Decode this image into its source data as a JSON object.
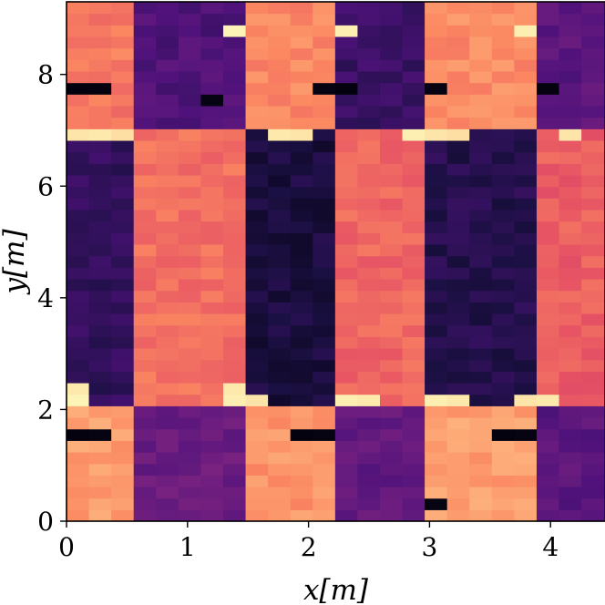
{
  "chart_data": {
    "type": "heatmap",
    "title": "",
    "xlabel": "x[m]",
    "ylabel": "y[m]",
    "xlim": [
      0,
      4.45
    ],
    "ylim": [
      0,
      9.3
    ],
    "x_ticks": [
      0,
      1,
      2,
      3,
      4
    ],
    "x_tick_labels": [
      "0",
      "1",
      "2",
      "3",
      "4"
    ],
    "y_ticks": [
      0,
      2,
      4,
      6,
      8
    ],
    "y_tick_labels": [
      "0",
      "2",
      "4",
      "6",
      "8"
    ],
    "colormap": "magma",
    "grid": false,
    "grid_shape": {
      "cols": 24,
      "rows": 45
    },
    "cell_size_m": {
      "dx": 0.185,
      "dy": 0.2067
    },
    "pattern_description": "checkerboard of bright (salmon/cream) and dark (purple/black) patches",
    "regions": [
      {
        "x_range": [
          0.0,
          0.55
        ],
        "y_range": [
          7.0,
          9.3
        ],
        "level": 0.72
      },
      {
        "x_range": [
          0.55,
          1.45
        ],
        "y_range": [
          7.0,
          9.3
        ],
        "level": 0.25
      },
      {
        "x_range": [
          1.45,
          2.25
        ],
        "y_range": [
          7.0,
          9.3
        ],
        "level": 0.75
      },
      {
        "x_range": [
          2.25,
          3.05
        ],
        "y_range": [
          7.0,
          9.3
        ],
        "level": 0.2
      },
      {
        "x_range": [
          3.05,
          3.95
        ],
        "y_range": [
          7.0,
          9.3
        ],
        "level": 0.76
      },
      {
        "x_range": [
          3.95,
          4.45
        ],
        "y_range": [
          7.0,
          9.3
        ],
        "level": 0.28
      },
      {
        "x_range": [
          0.0,
          0.55
        ],
        "y_range": [
          2.1,
          7.0
        ],
        "level": 0.18
      },
      {
        "x_range": [
          0.55,
          1.45
        ],
        "y_range": [
          2.1,
          7.0
        ],
        "level": 0.7
      },
      {
        "x_range": [
          1.45,
          2.25
        ],
        "y_range": [
          2.1,
          7.0
        ],
        "level": 0.12
      },
      {
        "x_range": [
          2.25,
          3.05
        ],
        "y_range": [
          2.1,
          7.0
        ],
        "level": 0.68
      },
      {
        "x_range": [
          3.05,
          3.95
        ],
        "y_range": [
          2.1,
          7.0
        ],
        "level": 0.15
      },
      {
        "x_range": [
          3.95,
          4.45
        ],
        "y_range": [
          2.1,
          7.0
        ],
        "level": 0.66
      },
      {
        "x_range": [
          0.0,
          0.55
        ],
        "y_range": [
          0.0,
          2.1
        ],
        "level": 0.8
      },
      {
        "x_range": [
          0.55,
          1.45
        ],
        "y_range": [
          0.0,
          2.1
        ],
        "level": 0.32
      },
      {
        "x_range": [
          1.45,
          2.25
        ],
        "y_range": [
          0.0,
          2.1
        ],
        "level": 0.78
      },
      {
        "x_range": [
          2.25,
          3.05
        ],
        "y_range": [
          0.0,
          2.1
        ],
        "level": 0.3
      },
      {
        "x_range": [
          3.05,
          3.95
        ],
        "y_range": [
          0.0,
          2.1
        ],
        "level": 0.8
      },
      {
        "x_range": [
          3.95,
          4.45
        ],
        "y_range": [
          0.0,
          2.1
        ],
        "level": 0.28
      }
    ],
    "highlight_cells": [
      {
        "col": 0,
        "row": 10,
        "level": 0.98
      },
      {
        "col": 0,
        "row": 11,
        "level": 0.96
      },
      {
        "col": 7,
        "row": 10,
        "level": 0.97
      },
      {
        "col": 7,
        "row": 11,
        "level": 0.96
      },
      {
        "col": 8,
        "row": 10,
        "level": 0.95
      },
      {
        "col": 12,
        "row": 10,
        "level": 0.97
      },
      {
        "col": 13,
        "row": 10,
        "level": 0.96
      },
      {
        "col": 16,
        "row": 10,
        "level": 0.97
      },
      {
        "col": 17,
        "row": 10,
        "level": 0.96
      },
      {
        "col": 20,
        "row": 10,
        "level": 0.95
      },
      {
        "col": 21,
        "row": 10,
        "level": 0.96
      },
      {
        "col": 0,
        "row": 33,
        "level": 0.95
      },
      {
        "col": 1,
        "row": 33,
        "level": 0.96
      },
      {
        "col": 2,
        "row": 33,
        "level": 0.94
      },
      {
        "col": 9,
        "row": 33,
        "level": 0.96
      },
      {
        "col": 10,
        "row": 33,
        "level": 0.95
      },
      {
        "col": 15,
        "row": 33,
        "level": 0.97
      },
      {
        "col": 16,
        "row": 33,
        "level": 0.95
      },
      {
        "col": 17,
        "row": 33,
        "level": 0.94
      },
      {
        "col": 22,
        "row": 33,
        "level": 0.95
      },
      {
        "col": 7,
        "row": 42,
        "level": 0.98
      },
      {
        "col": 12,
        "row": 42,
        "level": 0.97
      },
      {
        "col": 20,
        "row": 42,
        "level": 0.97
      },
      {
        "col": 0,
        "row": 7,
        "level": 0.02
      },
      {
        "col": 1,
        "row": 7,
        "level": 0.03
      },
      {
        "col": 10,
        "row": 7,
        "level": 0.02
      },
      {
        "col": 11,
        "row": 7,
        "level": 0.03
      },
      {
        "col": 19,
        "row": 7,
        "level": 0.02
      },
      {
        "col": 20,
        "row": 7,
        "level": 0.03
      },
      {
        "col": 0,
        "row": 37,
        "level": 0.02
      },
      {
        "col": 1,
        "row": 37,
        "level": 0.02
      },
      {
        "col": 11,
        "row": 37,
        "level": 0.03
      },
      {
        "col": 12,
        "row": 37,
        "level": 0.02
      },
      {
        "col": 16,
        "row": 37,
        "level": 0.03
      },
      {
        "col": 21,
        "row": 37,
        "level": 0.02
      },
      {
        "col": 6,
        "row": 36,
        "level": 0.03
      },
      {
        "col": 16,
        "row": 1,
        "level": 0.03
      }
    ]
  }
}
